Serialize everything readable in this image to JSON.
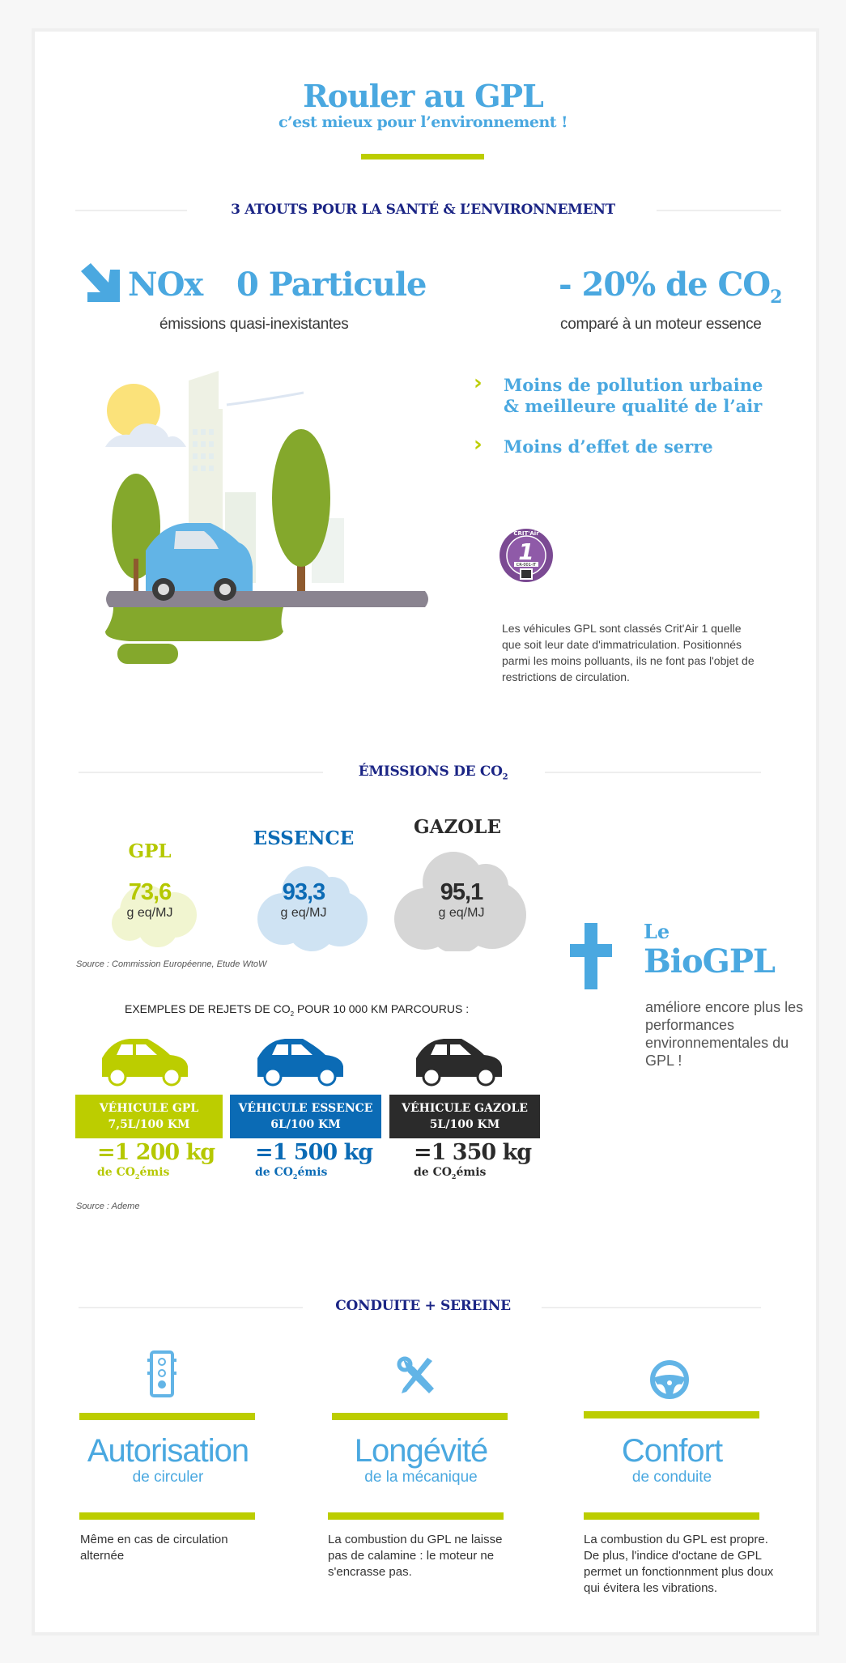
{
  "header": {
    "title": "Rouler au GPL",
    "subtitle": "c’est mieux pour l’environnement !"
  },
  "atouts": {
    "heading": "3 ATOUTS POUR LA SANTÉ & L’ENVIRONNEMENT",
    "nox": "NOx",
    "particule": "0 Particule",
    "nox_sub": "émissions quasi-inexistantes",
    "co2": "- 20% de CO",
    "co2_sub_index": "2",
    "co2_sub": "comparé à un moteur essence",
    "bullets": [
      {
        "line1": "Moins de pollution urbaine",
        "line2": "& meilleure qualité de l’air"
      },
      {
        "line1": "Moins d’effet de serre"
      }
    ],
    "critair_badge": {
      "title": "CRIT'Air",
      "number": "1",
      "code": "CR-001-IT",
      "left": "République",
      "right": "Française"
    },
    "critair_text": "Les véhicules GPL sont classés Crit'Air 1 quelle que soit leur date d'immatriculation. Positionnés parmi les moins polluants, ils ne font pas l'objet de restrictions de circulation."
  },
  "emissions": {
    "heading": "ÉMISSIONS DE CO",
    "heading_index": "2",
    "fuels": [
      {
        "name": "GPL",
        "value": "73,6",
        "unit": "g eq/MJ",
        "color": "#b5c800",
        "cloud": "#f1f5d0"
      },
      {
        "name": "ESSENCE",
        "value": "93,3",
        "unit": "g eq/MJ",
        "color": "#0b6bb5",
        "cloud": "#cfe3f3"
      },
      {
        "name": "GAZOLE",
        "value": "95,1",
        "unit": "g eq/MJ",
        "color": "#2b2b2b",
        "cloud": "#d6d6d6"
      }
    ],
    "source1": "Source : Commission Européenne, Etude WtoW",
    "examples_title_a": "EXEMPLES DE REJETS DE CO",
    "examples_title_index": "2",
    "examples_title_b": " POUR 10 000 KM PARCOURUS :",
    "vehicles": [
      {
        "label": "VÉHICULE GPL",
        "consumption": "7,5L/100 KM",
        "kg": "=1 200 kg",
        "emis_a": "de CO",
        "emis_index": "2",
        "emis_b": "émis",
        "color": "#bccd00"
      },
      {
        "label": "VÉHICULE ESSENCE",
        "consumption": "6L/100 KM",
        "kg": "=1 500 kg",
        "emis_a": "de CO",
        "emis_index": "2",
        "emis_b": "émis",
        "color": "#0b6bb5"
      },
      {
        "label": "VÉHICULE GAZOLE",
        "consumption": "5L/100 KM",
        "kg": "=1 350 kg",
        "emis_a": "de CO",
        "emis_index": "2",
        "emis_b": "émis",
        "color": "#2b2b2b"
      }
    ],
    "source2": "Source : Ademe",
    "biogpl": {
      "le": "Le",
      "title": "BioGPL",
      "text": "améliore encore plus les performances environnementales du GPL !"
    }
  },
  "conduite": {
    "heading": "CONDUITE + SEREINE",
    "features": [
      {
        "icon": "traffic-light-icon",
        "title": "Autorisation",
        "subtitle": "de circuler",
        "text": "Même en cas de circulation alternée"
      },
      {
        "icon": "wrench-screwdriver-icon",
        "title": "Longévité",
        "subtitle": "de la mécanique",
        "text": "La combustion du GPL ne laisse pas de calamine : le moteur ne s'encrasse pas."
      },
      {
        "icon": "steering-wheel-icon",
        "title": "Confort",
        "subtitle": "de conduite",
        "text": "La combustion du GPL est propre. De plus, l'indice d'octane de GPL permet un fonctionnment plus doux qui évitera les vibrations."
      }
    ]
  },
  "colors": {
    "accent_blue": "#4aa8e0",
    "navy": "#1b2585",
    "lime": "#bccd00",
    "essence_blue": "#0b6bb5",
    "dark": "#2b2b2b"
  }
}
